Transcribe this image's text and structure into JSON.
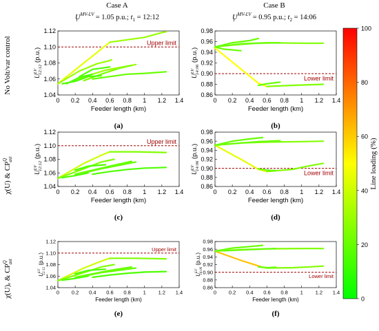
{
  "header": {
    "col_a": "Case A",
    "col_b": "Case B",
    "col_a_sub": {
      "sym": "U",
      "sup": "MV-LV",
      "sub": "t",
      "rest": "= 1.05 p.u.; ",
      "tsym": "t",
      "tsub": "1",
      "trest": "= 12:12"
    },
    "col_b_sub": {
      "sym": "U",
      "sup": "MV-LV",
      "sub": "t",
      "rest": "= 0.95 p.u.; ",
      "tsym": "t",
      "tsub": "2",
      "trest": "= 14:06"
    }
  },
  "rows": [
    {
      "label": "No Volt/var control"
    },
    {
      "label": "χ(U) & CP",
      "sup": "Q",
      "sub": "ast"
    },
    {
      "label": "χ(U)ₑ & CP",
      "sup": "Q",
      "sub": "ast"
    }
  ],
  "colorbar": {
    "label": "Line loading (%)",
    "ticks": [
      "0",
      "20",
      "40",
      "60",
      "80",
      "100"
    ],
    "stops": [
      "#00ff00",
      "#ffff00",
      "#ff0000"
    ]
  },
  "chart_data": [
    {
      "id": "a",
      "type": "line",
      "panel_label": "(a)",
      "xlabel": "Feeder length (km)",
      "ylabel": "U",
      "ylabel_sup": "LV",
      "ylabel_sub": "12:12",
      "ylabel_unit": "(p.u.)",
      "xlim": [
        0,
        1.4
      ],
      "ylim": [
        1.04,
        1.12
      ],
      "xticks": [
        "0",
        "0.2",
        "0.4",
        "0.6",
        "0.8",
        "1",
        "1.2",
        "1.4"
      ],
      "yticks": [
        "1.04",
        "1.06",
        "1.08",
        "1.10",
        "1.12"
      ],
      "limit": {
        "value": 1.1,
        "label": "Upper limit"
      },
      "series": [
        {
          "loading": 45,
          "x": [
            0,
            0.6
          ],
          "y": [
            1.054,
            1.106
          ]
        },
        {
          "loading": 30,
          "x": [
            0.6,
            1.0,
            1.2,
            1.25
          ],
          "y": [
            1.106,
            1.112,
            1.118,
            1.119
          ]
        },
        {
          "loading": 30,
          "x": [
            0,
            0.25,
            0.45,
            0.6,
            0.62
          ],
          "y": [
            1.054,
            1.07,
            1.079,
            1.083,
            1.084
          ]
        },
        {
          "loading": 30,
          "x": [
            0.2,
            0.4,
            0.55,
            0.7,
            0.9
          ],
          "y": [
            1.058,
            1.066,
            1.071,
            1.074,
            1.078
          ]
        },
        {
          "loading": 25,
          "x": [
            0.3,
            0.5,
            0.7,
            0.85
          ],
          "y": [
            1.058,
            1.066,
            1.073,
            1.077
          ]
        },
        {
          "loading": 20,
          "x": [
            0.4,
            0.6,
            0.8,
            1.0,
            1.25
          ],
          "y": [
            1.06,
            1.063,
            1.066,
            1.067,
            1.069
          ]
        },
        {
          "loading": 15,
          "x": [
            0.05,
            0.2,
            0.35,
            0.5
          ],
          "y": [
            1.054,
            1.057,
            1.063,
            1.064
          ]
        },
        {
          "loading": 15,
          "x": [
            0.1,
            0.25,
            0.4
          ],
          "y": [
            1.054,
            1.062,
            1.066
          ]
        },
        {
          "loading": 15,
          "x": [
            0.25,
            0.4,
            0.6
          ],
          "y": [
            1.063,
            1.072,
            1.075
          ]
        }
      ]
    },
    {
      "id": "b",
      "type": "line",
      "panel_label": "(b)",
      "xlabel": "Feeder length (km)",
      "ylabel": "U",
      "ylabel_sup": "LV",
      "ylabel_sub": "14:06",
      "ylabel_unit": "(p.u.)",
      "xlim": [
        0,
        1.4
      ],
      "ylim": [
        0.86,
        0.98
      ],
      "xticks": [
        "0",
        "0.2",
        "0.4",
        "0.6",
        "0.8",
        "1",
        "1.2",
        "1.4"
      ],
      "yticks": [
        "0.86",
        "0.88",
        "0.90",
        "0.92",
        "0.94",
        "0.96",
        "0.98"
      ],
      "limit": {
        "value": 0.9,
        "label": "Lower limit"
      },
      "series": [
        {
          "loading": 50,
          "x": [
            0,
            0.5,
            0.6
          ],
          "y": [
            0.948,
            0.882,
            0.876
          ]
        },
        {
          "loading": 25,
          "x": [
            0.6,
            0.9,
            1.25
          ],
          "y": [
            0.876,
            0.878,
            0.88
          ]
        },
        {
          "loading": 25,
          "x": [
            0,
            0.3,
            0.6,
            1.0,
            1.25
          ],
          "y": [
            0.95,
            0.956,
            0.958,
            0.957,
            0.957
          ]
        },
        {
          "loading": 20,
          "x": [
            0,
            0.2,
            0.4,
            0.5
          ],
          "y": [
            0.95,
            0.958,
            0.962,
            0.966
          ]
        },
        {
          "loading": 20,
          "x": [
            0.1,
            0.3,
            0.5,
            0.75
          ],
          "y": [
            0.952,
            0.955,
            0.957,
            0.958
          ]
        },
        {
          "loading": 20,
          "x": [
            0,
            0.1,
            0.3
          ],
          "y": [
            0.95,
            0.946,
            0.943
          ]
        },
        {
          "loading": 20,
          "x": [
            0.5,
            0.6,
            0.75
          ],
          "y": [
            0.878,
            0.881,
            0.884
          ]
        }
      ]
    },
    {
      "id": "c",
      "type": "line",
      "panel_label": "(c)",
      "xlabel": "Feeder length (km)",
      "ylabel": "U",
      "ylabel_sup": "LV",
      "ylabel_sub": "12:12",
      "ylabel_unit": "(p.u.)",
      "xlim": [
        0,
        1.4
      ],
      "ylim": [
        1.04,
        1.12
      ],
      "xticks": [
        "0",
        "0.2",
        "0.4",
        "0.6",
        "0.8",
        "1",
        "1.2",
        "1.4"
      ],
      "yticks": [
        "1.04",
        "1.06",
        "1.08",
        "1.10",
        "1.12"
      ],
      "limit": {
        "value": 1.1,
        "label": "Upper limit"
      },
      "series": [
        {
          "loading": 40,
          "x": [
            0,
            0.3,
            0.5,
            0.6
          ],
          "y": [
            1.052,
            1.074,
            1.086,
            1.091
          ]
        },
        {
          "loading": 25,
          "x": [
            0.6,
            0.9,
            1.25
          ],
          "y": [
            1.091,
            1.091,
            1.09
          ]
        },
        {
          "loading": 25,
          "x": [
            0,
            0.3,
            0.5,
            0.65
          ],
          "y": [
            1.052,
            1.066,
            1.076,
            1.08
          ]
        },
        {
          "loading": 20,
          "x": [
            0.2,
            0.4,
            0.6,
            0.85
          ],
          "y": [
            1.058,
            1.064,
            1.07,
            1.077
          ]
        },
        {
          "loading": 20,
          "x": [
            0.3,
            0.5,
            0.7,
            0.9
          ],
          "y": [
            1.06,
            1.066,
            1.071,
            1.076
          ]
        },
        {
          "loading": 15,
          "x": [
            0.4,
            0.6,
            0.8,
            1.0,
            1.25
          ],
          "y": [
            1.058,
            1.062,
            1.065,
            1.067,
            1.068
          ]
        },
        {
          "loading": 15,
          "x": [
            0.05,
            0.2,
            0.35
          ],
          "y": [
            1.053,
            1.056,
            1.06
          ]
        },
        {
          "loading": 15,
          "x": [
            0.2,
            0.35,
            0.55
          ],
          "y": [
            1.064,
            1.07,
            1.072
          ]
        }
      ]
    },
    {
      "id": "d",
      "type": "line",
      "panel_label": "(d)",
      "xlabel": "Feeder length (km)",
      "ylabel": "U",
      "ylabel_sup": "LV",
      "ylabel_sub": "14:06",
      "ylabel_unit": "(p.u.)",
      "xlim": [
        0,
        1.4
      ],
      "ylim": [
        0.86,
        0.98
      ],
      "xticks": [
        "0",
        "0.2",
        "0.4",
        "0.6",
        "0.8",
        "1",
        "1.2",
        "1.4"
      ],
      "yticks": [
        "0.86",
        "0.88",
        "0.90",
        "0.92",
        "0.94",
        "0.96",
        "0.98"
      ],
      "limit": {
        "value": 0.9,
        "label": "Lower limit"
      },
      "series": [
        {
          "loading": 45,
          "x": [
            0,
            0.3,
            0.5,
            0.6
          ],
          "y": [
            0.951,
            0.92,
            0.898,
            0.893
          ]
        },
        {
          "loading": 25,
          "x": [
            0.6,
            0.9,
            1.1,
            1.25
          ],
          "y": [
            0.893,
            0.898,
            0.906,
            0.911
          ]
        },
        {
          "loading": 25,
          "x": [
            0,
            0.3,
            0.6,
            1.0,
            1.25
          ],
          "y": [
            0.951,
            0.956,
            0.958,
            0.959,
            0.96
          ]
        },
        {
          "loading": 20,
          "x": [
            0,
            0.2,
            0.4,
            0.55
          ],
          "y": [
            0.951,
            0.96,
            0.965,
            0.968
          ]
        },
        {
          "loading": 20,
          "x": [
            0.1,
            0.3,
            0.5,
            0.75
          ],
          "y": [
            0.953,
            0.956,
            0.959,
            0.961
          ]
        },
        {
          "loading": 20,
          "x": [
            0.5,
            0.6,
            0.7
          ],
          "y": [
            0.899,
            0.896,
            0.895
          ]
        }
      ]
    },
    {
      "id": "e",
      "type": "line",
      "panel_label": "(e)",
      "xlabel": "Feeder length (km)",
      "ylabel": "U",
      "ylabel_sup": "LV",
      "ylabel_sub": "12:12",
      "ylabel_unit": "(p.u.)",
      "xlim": [
        0,
        1.4
      ],
      "ylim": [
        1.04,
        1.12
      ],
      "xticks": [
        "0",
        "0.2",
        "0.4",
        "0.6",
        "0.8",
        "1",
        "1.2",
        "1.4"
      ],
      "yticks": [
        "1.04",
        "1.06",
        "1.08",
        "1.10",
        "1.12"
      ],
      "limit": {
        "value": 1.1,
        "label": "Upper limit"
      },
      "series": [
        {
          "loading": 40,
          "x": [
            0,
            0.3,
            0.5,
            0.6
          ],
          "y": [
            1.052,
            1.074,
            1.086,
            1.091
          ]
        },
        {
          "loading": 25,
          "x": [
            0.6,
            0.9,
            1.25
          ],
          "y": [
            1.091,
            1.091,
            1.09
          ]
        },
        {
          "loading": 25,
          "x": [
            0,
            0.3,
            0.5,
            0.65
          ],
          "y": [
            1.052,
            1.066,
            1.076,
            1.08
          ]
        },
        {
          "loading": 20,
          "x": [
            0.2,
            0.4,
            0.6,
            0.85
          ],
          "y": [
            1.058,
            1.064,
            1.07,
            1.076
          ]
        },
        {
          "loading": 20,
          "x": [
            0.3,
            0.5,
            0.7,
            0.9
          ],
          "y": [
            1.06,
            1.066,
            1.07,
            1.074
          ]
        },
        {
          "loading": 15,
          "x": [
            0.4,
            0.6,
            0.8,
            1.0,
            1.25
          ],
          "y": [
            1.058,
            1.062,
            1.065,
            1.067,
            1.068
          ]
        },
        {
          "loading": 15,
          "x": [
            0.05,
            0.2,
            0.35
          ],
          "y": [
            1.053,
            1.056,
            1.06
          ]
        },
        {
          "loading": 15,
          "x": [
            0.2,
            0.35,
            0.55
          ],
          "y": [
            1.064,
            1.07,
            1.072
          ]
        }
      ]
    },
    {
      "id": "f",
      "type": "line",
      "panel_label": "(f)",
      "xlabel": "Feeder length (km)",
      "ylabel": "U",
      "ylabel_sup": "LV",
      "ylabel_sub": "14:06",
      "ylabel_unit": "(p.u.)",
      "xlim": [
        0,
        1.4
      ],
      "ylim": [
        0.86,
        0.98
      ],
      "xticks": [
        "0",
        "0.2",
        "0.4",
        "0.6",
        "0.8",
        "1",
        "1.2",
        "1.4"
      ],
      "yticks": [
        "0.86",
        "0.88",
        "0.90",
        "0.92",
        "0.94",
        "0.96",
        "0.98"
      ],
      "limit": {
        "value": 0.9,
        "label": "Lower limit"
      },
      "series": [
        {
          "loading": 62,
          "x": [
            0,
            0.3,
            0.55,
            0.6
          ],
          "y": [
            0.955,
            0.931,
            0.913,
            0.911
          ]
        },
        {
          "loading": 25,
          "x": [
            0.6,
            0.9,
            1.1,
            1.25
          ],
          "y": [
            0.911,
            0.912,
            0.914,
            0.916
          ]
        },
        {
          "loading": 25,
          "x": [
            0,
            0.3,
            0.6,
            1.0,
            1.25
          ],
          "y": [
            0.955,
            0.959,
            0.961,
            0.962,
            0.962
          ]
        },
        {
          "loading": 20,
          "x": [
            0,
            0.2,
            0.4,
            0.55
          ],
          "y": [
            0.955,
            0.963,
            0.967,
            0.97
          ]
        },
        {
          "loading": 20,
          "x": [
            0.1,
            0.3,
            0.5,
            0.7
          ],
          "y": [
            0.956,
            0.958,
            0.96,
            0.962
          ]
        },
        {
          "loading": 20,
          "x": [
            0.5,
            0.6,
            0.7
          ],
          "y": [
            0.914,
            0.912,
            0.913
          ]
        }
      ]
    }
  ]
}
